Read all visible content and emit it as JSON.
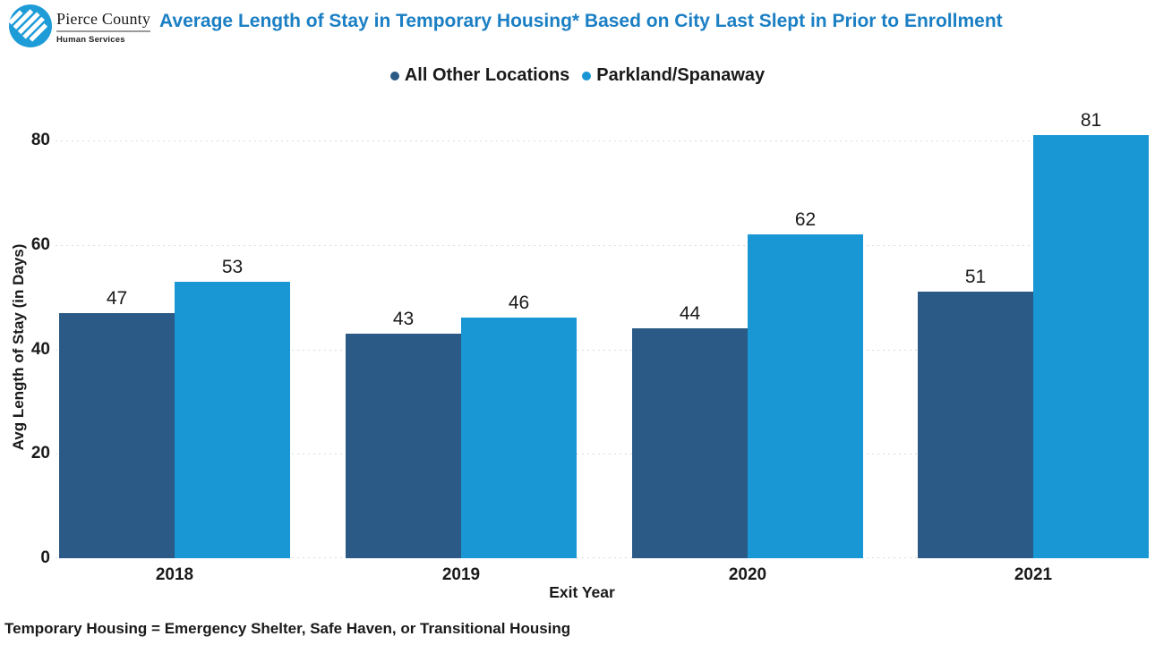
{
  "header": {
    "logo": {
      "org": "Pierce County",
      "dept": "Human Services",
      "circle_color": "#1E9CD8"
    },
    "title": "Average Length of Stay in Temporary Housing* Based on City Last Slept in Prior to Enrollment",
    "title_color": "#1B7FC4"
  },
  "legend": {
    "items": [
      {
        "label": "All Other Locations",
        "color": "#2A5A85"
      },
      {
        "label": "Parkland/Spanaway",
        "color": "#1996D4"
      }
    ]
  },
  "chart_data": {
    "type": "bar",
    "categories": [
      "2018",
      "2019",
      "2020",
      "2021"
    ],
    "series": [
      {
        "name": "All Other Locations",
        "color": "#2A5A85",
        "values": [
          47,
          43,
          44,
          51
        ]
      },
      {
        "name": "Parkland/Spanaway",
        "color": "#1996D4",
        "values": [
          53,
          46,
          62,
          81
        ]
      }
    ],
    "title": "Average Length of Stay in Temporary Housing* Based on City Last Slept in Prior to Enrollment",
    "xlabel": "Exit Year",
    "ylabel": "Avg Length of Stay (in Days)",
    "yticks": [
      0,
      20,
      40,
      60,
      80
    ],
    "ylim": [
      0,
      80
    ],
    "grid": "horizontal-dotted",
    "legend_position": "top",
    "bar_value_labels": true
  },
  "footnote": "Temporary Housing = Emergency Shelter, Safe Haven, or Transitional Housing"
}
